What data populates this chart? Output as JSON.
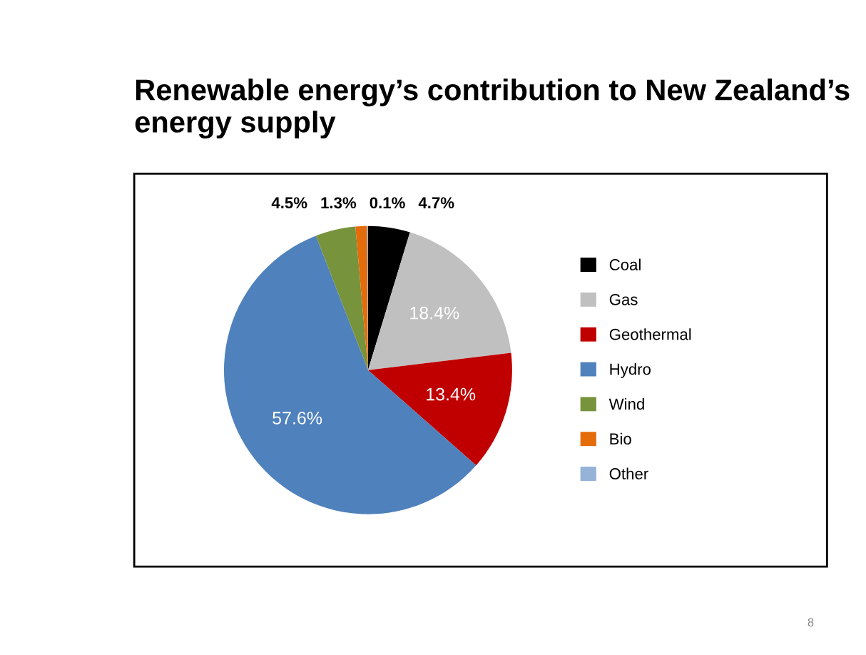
{
  "chart_data": {
    "type": "pie",
    "title": "Renewable energy’s contribution to New Zealand’s energy supply",
    "categories": [
      "Coal",
      "Gas",
      "Geothermal",
      "Hydro",
      "Wind",
      "Bio",
      "Other"
    ],
    "values": [
      4.7,
      18.4,
      13.4,
      57.6,
      4.5,
      1.3,
      0.1
    ],
    "colors": [
      "#000000",
      "#c0c0c0",
      "#c00000",
      "#4f81bd",
      "#77933c",
      "#e46c0a",
      "#95b3d7"
    ],
    "value_labels": [
      "4.7%",
      "18.4%",
      "13.4%",
      "57.6%",
      "4.5%",
      "1.3%",
      "0.1%"
    ],
    "legend": "right",
    "annotations": [
      "8"
    ]
  }
}
